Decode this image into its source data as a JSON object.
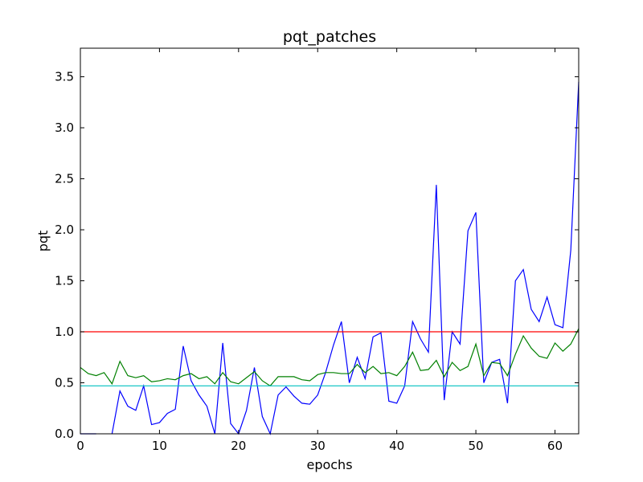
{
  "chart_data": {
    "type": "line",
    "title": "pqt_patches",
    "xlabel": "epochs",
    "ylabel": "pqt",
    "x": [
      0,
      1,
      2,
      3,
      4,
      5,
      6,
      7,
      8,
      9,
      10,
      11,
      12,
      13,
      14,
      15,
      16,
      17,
      18,
      19,
      20,
      21,
      22,
      23,
      24,
      25,
      26,
      27,
      28,
      29,
      30,
      31,
      32,
      33,
      34,
      35,
      36,
      37,
      38,
      39,
      40,
      41,
      42,
      43,
      44,
      45,
      46,
      47,
      48,
      49,
      50,
      51,
      52,
      53,
      54,
      55,
      56,
      57,
      58,
      59,
      60,
      61,
      62,
      63
    ],
    "series": [
      {
        "color": "#0000ff",
        "values": [
          0,
          0,
          0,
          null,
          0,
          0.42,
          0.27,
          0.23,
          0.47,
          0.09,
          0.11,
          0.2,
          0.24,
          0.86,
          0.52,
          0.38,
          0.27,
          0,
          0.89,
          0.1,
          0,
          0.23,
          0.65,
          0.17,
          0,
          0.38,
          0.46,
          0.37,
          0.3,
          0.29,
          0.38,
          0.6,
          0.87,
          1.1,
          0.5,
          0.75,
          0.54,
          0.95,
          0.99,
          0.32,
          0.3,
          0.47,
          1.1,
          0.93,
          0.8,
          2.44,
          0.33,
          1.0,
          0.88,
          1.99,
          2.17,
          0.5,
          0.7,
          0.73,
          0.3,
          1.5,
          1.61,
          1.22,
          1.1,
          1.34,
          1.07,
          1.04,
          1.8,
          3.45
        ]
      },
      {
        "color": "#008000",
        "values": [
          0.65,
          0.59,
          0.57,
          0.6,
          0.49,
          0.71,
          0.57,
          0.55,
          0.57,
          0.51,
          0.52,
          0.54,
          0.53,
          0.57,
          0.59,
          0.54,
          0.56,
          0.49,
          0.6,
          0.51,
          0.49,
          0.55,
          0.61,
          0.52,
          0.47,
          0.56,
          0.56,
          0.56,
          0.53,
          0.52,
          0.58,
          0.6,
          0.6,
          0.59,
          0.59,
          0.68,
          0.6,
          0.66,
          0.59,
          0.6,
          0.57,
          0.66,
          0.8,
          0.62,
          0.63,
          0.72,
          0.56,
          0.7,
          0.62,
          0.66,
          0.88,
          0.57,
          0.7,
          0.69,
          0.57,
          0.78,
          0.96,
          0.84,
          0.76,
          0.74,
          0.89,
          0.81,
          0.88,
          1.03
        ]
      }
    ],
    "hlines": [
      {
        "value": 1.0,
        "color": "#ff0000"
      },
      {
        "value": 0.47,
        "color": "#00bfbf"
      }
    ],
    "xlim": [
      0,
      63
    ],
    "ylim": [
      0,
      3.78
    ],
    "xticks": [
      0,
      10,
      20,
      30,
      40,
      50,
      60
    ],
    "yticks": [
      {
        "value": 0,
        "label": "0.0"
      },
      {
        "value": 0.5,
        "label": "0.5"
      },
      {
        "value": 1,
        "label": "1.0"
      },
      {
        "value": 1.5,
        "label": "1.5"
      },
      {
        "value": 2,
        "label": "2.0"
      },
      {
        "value": 2.5,
        "label": "2.5"
      },
      {
        "value": 3,
        "label": "3.0"
      },
      {
        "value": 3.5,
        "label": "3.5"
      }
    ]
  }
}
